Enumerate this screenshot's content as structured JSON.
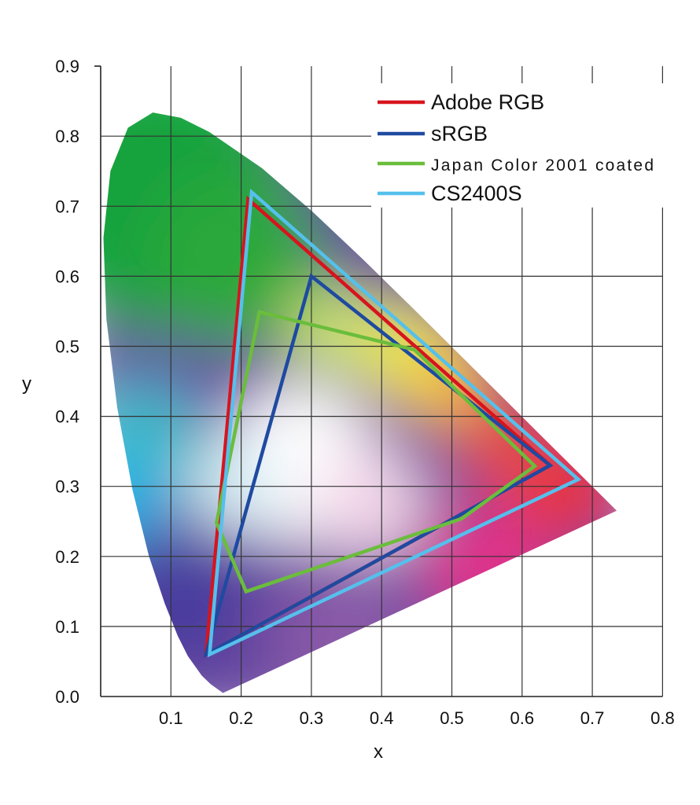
{
  "chart_data": {
    "type": "line",
    "title": "",
    "xlabel": "x",
    "ylabel": "y",
    "xlim": [
      0,
      0.8
    ],
    "ylim": [
      0,
      0.9
    ],
    "x_ticks": [
      "0.1",
      "0.2",
      "0.3",
      "0.4",
      "0.5",
      "0.6",
      "0.7",
      "0.8"
    ],
    "y_ticks": [
      "0.0",
      "0.1",
      "0.2",
      "0.3",
      "0.4",
      "0.5",
      "0.6",
      "0.7",
      "0.8",
      "0.9"
    ],
    "grid": true,
    "legend_placement": "top-right",
    "spectral_locus": [
      [
        0.1741,
        0.005
      ],
      [
        0.1566,
        0.0177
      ],
      [
        0.144,
        0.0297
      ],
      [
        0.1241,
        0.0578
      ],
      [
        0.1096,
        0.0868
      ],
      [
        0.0913,
        0.1327
      ],
      [
        0.0687,
        0.2007
      ],
      [
        0.0454,
        0.295
      ],
      [
        0.0235,
        0.4127
      ],
      [
        0.0082,
        0.5384
      ],
      [
        0.0039,
        0.6548
      ],
      [
        0.0139,
        0.7502
      ],
      [
        0.0389,
        0.812
      ],
      [
        0.0743,
        0.8338
      ],
      [
        0.1142,
        0.8262
      ],
      [
        0.1547,
        0.8059
      ],
      [
        0.2296,
        0.7543
      ],
      [
        0.3016,
        0.6923
      ],
      [
        0.3731,
        0.6245
      ],
      [
        0.4441,
        0.5547
      ],
      [
        0.5125,
        0.4866
      ],
      [
        0.5752,
        0.4242
      ],
      [
        0.627,
        0.3725
      ],
      [
        0.6915,
        0.3083
      ],
      [
        0.7347,
        0.2653
      ]
    ],
    "series": [
      {
        "name": "Adobe RGB",
        "color": "#d7141e",
        "points": [
          [
            0.64,
            0.33
          ],
          [
            0.21,
            0.71
          ],
          [
            0.15,
            0.06
          ]
        ]
      },
      {
        "name": "sRGB",
        "color": "#1f4aa0",
        "points": [
          [
            0.64,
            0.33
          ],
          [
            0.3,
            0.6
          ],
          [
            0.15,
            0.06
          ]
        ]
      },
      {
        "name": "Japan Color 2001 coated",
        "color": "#6bbd3c",
        "points": [
          [
            0.226,
            0.549
          ],
          [
            0.447,
            0.495
          ],
          [
            0.618,
            0.329
          ],
          [
            0.514,
            0.254
          ],
          [
            0.207,
            0.15
          ],
          [
            0.165,
            0.248
          ]
        ]
      },
      {
        "name": "CS2400S",
        "color": "#55c0ec",
        "points": [
          [
            0.68,
            0.31
          ],
          [
            0.215,
            0.72
          ],
          [
            0.155,
            0.06
          ]
        ]
      }
    ]
  }
}
